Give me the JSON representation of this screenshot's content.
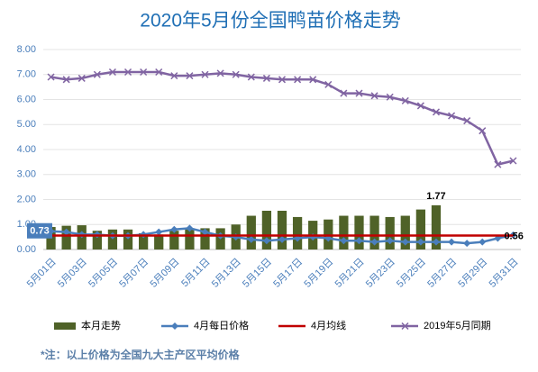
{
  "chart_data": {
    "type": "bar",
    "title": "2020年5月份全国鸭苗价格走势",
    "categories": [
      "5月01日",
      null,
      "5月03日",
      null,
      "5月05日",
      null,
      "5月07日",
      null,
      "5月09日",
      null,
      "5月11日",
      null,
      "5月13日",
      null,
      "5月15日",
      null,
      "5月17日",
      null,
      "5月19日",
      null,
      "5月21日",
      null,
      "5月23日",
      null,
      "5月25日",
      null,
      "5月27日",
      null,
      "5月29日",
      null,
      "5月31日"
    ],
    "ylim": [
      0,
      8
    ],
    "yticks": [
      {
        "value": 0,
        "label": "0.00"
      },
      {
        "value": 1,
        "label": "1.00"
      },
      {
        "value": 2,
        "label": "2.00"
      },
      {
        "value": 3,
        "label": "3.00"
      },
      {
        "value": 4,
        "label": "4.00"
      },
      {
        "value": 5,
        "label": "5.00"
      },
      {
        "value": 6,
        "label": "6.00"
      },
      {
        "value": 7,
        "label": "7.00"
      },
      {
        "value": 8,
        "label": "8.00"
      }
    ],
    "grid": true,
    "legend": "bottom",
    "series": [
      {
        "name": "本月走势",
        "type": "bar",
        "color": "#4f6228",
        "values": [
          0.9,
          0.95,
          0.97,
          0.75,
          0.8,
          0.8,
          0.65,
          0.6,
          0.75,
          0.85,
          0.85,
          0.85,
          1.0,
          1.35,
          1.55,
          1.55,
          1.3,
          1.15,
          1.2,
          1.35,
          1.35,
          1.35,
          1.3,
          1.35,
          1.6,
          1.77,
          null,
          null,
          null,
          null,
          null
        ],
        "value_labels": [
          null,
          null,
          null,
          null,
          null,
          null,
          null,
          null,
          null,
          null,
          null,
          null,
          null,
          null,
          null,
          null,
          null,
          null,
          null,
          null,
          null,
          null,
          null,
          null,
          null,
          "1.77",
          null,
          null,
          null,
          null,
          null
        ]
      },
      {
        "name": "4月每日价格",
        "type": "line",
        "marker": "diamond",
        "color": "#4a7ebb",
        "values": [
          0.73,
          0.7,
          0.6,
          0.6,
          0.55,
          0.55,
          0.6,
          0.7,
          0.8,
          0.85,
          0.7,
          0.55,
          0.5,
          0.4,
          0.35,
          0.4,
          0.45,
          0.5,
          0.45,
          0.35,
          0.35,
          0.3,
          0.35,
          0.3,
          0.3,
          0.3,
          0.3,
          0.25,
          0.3,
          0.45,
          0.58
        ],
        "value_labels": [
          "0.73",
          null,
          null,
          null,
          null,
          null,
          null,
          null,
          null,
          null,
          null,
          null,
          null,
          null,
          null,
          null,
          null,
          null,
          null,
          null,
          null,
          null,
          null,
          null,
          null,
          null,
          null,
          null,
          null,
          null,
          null
        ]
      },
      {
        "name": "4月均线",
        "type": "line",
        "marker": "none",
        "color": "#c00000",
        "values": [
          0.56,
          0.56,
          0.56,
          0.56,
          0.56,
          0.56,
          0.56,
          0.56,
          0.56,
          0.56,
          0.56,
          0.56,
          0.56,
          0.56,
          0.56,
          0.56,
          0.56,
          0.56,
          0.56,
          0.56,
          0.56,
          0.56,
          0.56,
          0.56,
          0.56,
          0.56,
          0.56,
          0.56,
          0.56,
          0.56,
          0.56
        ],
        "value_labels": [
          null,
          null,
          null,
          null,
          null,
          null,
          null,
          null,
          null,
          null,
          null,
          null,
          null,
          null,
          null,
          null,
          null,
          null,
          null,
          null,
          null,
          null,
          null,
          null,
          null,
          null,
          null,
          null,
          null,
          null,
          "0.56"
        ]
      },
      {
        "name": "2019年5月同期",
        "type": "line",
        "marker": "x",
        "color": "#8064a2",
        "values": [
          6.9,
          6.8,
          6.85,
          7.0,
          7.1,
          7.1,
          7.1,
          7.1,
          6.95,
          6.95,
          7.0,
          7.05,
          7.0,
          6.9,
          6.85,
          6.8,
          6.8,
          6.8,
          6.6,
          6.25,
          6.25,
          6.15,
          6.1,
          5.95,
          5.75,
          5.5,
          5.35,
          5.15,
          4.75,
          3.4,
          3.55
        ]
      }
    ],
    "footnote": "*注：以上价格为全国九大主产区平均价格"
  }
}
